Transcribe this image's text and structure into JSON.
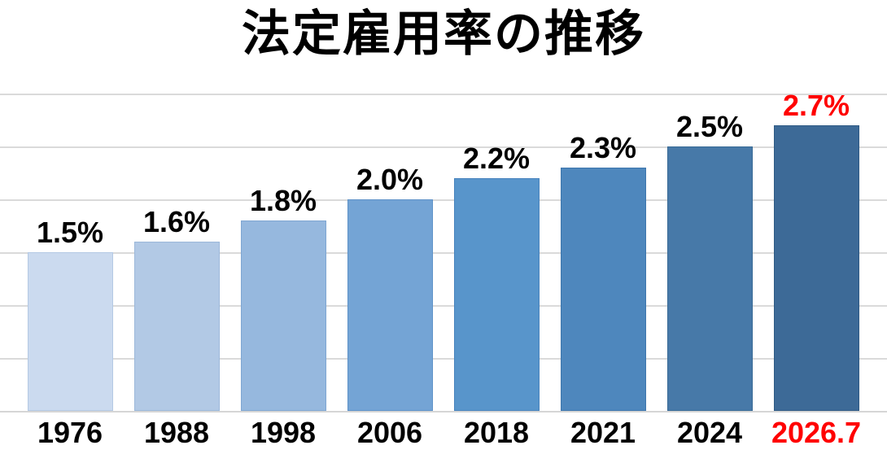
{
  "chart_data": {
    "type": "bar",
    "title": "法定雇用率の推移",
    "categories": [
      "1976",
      "1988",
      "1998",
      "2006",
      "2018",
      "2021",
      "2024",
      "2026.7"
    ],
    "values": [
      1.5,
      1.6,
      1.8,
      2.0,
      2.2,
      2.3,
      2.5,
      2.7
    ],
    "value_labels": [
      "1.5%",
      "1.6%",
      "1.8%",
      "2.0%",
      "2.2%",
      "2.3%",
      "2.5%",
      "2.7%"
    ],
    "xlabel": "",
    "ylabel": "",
    "ylim": [
      0,
      3.0
    ],
    "gridline_step": 0.5,
    "grid": true,
    "legend": "none",
    "bar_colors": [
      "#cbdaef",
      "#b2c9e5",
      "#96b8de",
      "#74a4d5",
      "#5895cb",
      "#4e87bd",
      "#4779a8",
      "#3d6a97"
    ],
    "bar_border_colors": [
      "#b4c9e4",
      "#9cb8da",
      "#7fa6d2",
      "#5e92c8",
      "#4783bd",
      "#3d76ad",
      "#386a96",
      "#2e5a84"
    ],
    "highlight_index": 7,
    "highlight_color": "#ff0000",
    "label_color": "#000000",
    "title_color": "#000000",
    "gridline_color": "#dadada",
    "axisline_color": "#d6d6d6",
    "background_color": "#ffffff"
  }
}
